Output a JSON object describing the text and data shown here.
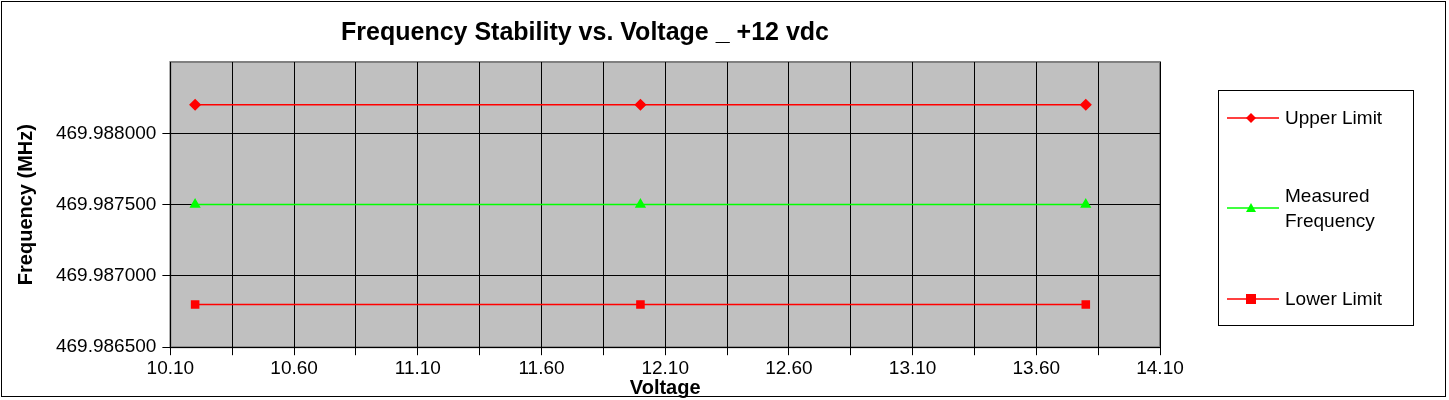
{
  "chart_data": {
    "type": "line",
    "title": "Frequency Stability vs. Voltage _ +12 vdc",
    "xlabel": "Voltage",
    "ylabel": "Frequency (MHz)",
    "x": [
      10.2,
      12.0,
      13.8
    ],
    "series": [
      {
        "name": "Upper Limit",
        "color": "#ff0000",
        "marker": "diamond",
        "values": [
          469.9882,
          469.9882,
          469.9882
        ]
      },
      {
        "name": "Measured Frequency",
        "color": "#00ff00",
        "marker": "triangle",
        "values": [
          469.9875,
          469.9875,
          469.9875
        ]
      },
      {
        "name": "Lower Limit",
        "color": "#ff0000",
        "marker": "square",
        "values": [
          469.9868,
          469.9868,
          469.9868
        ]
      }
    ],
    "xlim": [
      10.1,
      14.1
    ],
    "xticks": [
      {
        "value": 10.1,
        "label": "10.10"
      },
      {
        "value": 10.35,
        "label": null
      },
      {
        "value": 10.6,
        "label": "10.60"
      },
      {
        "value": 10.85,
        "label": null
      },
      {
        "value": 11.1,
        "label": "11.10"
      },
      {
        "value": 11.35,
        "label": null
      },
      {
        "value": 11.6,
        "label": "11.60"
      },
      {
        "value": 11.85,
        "label": null
      },
      {
        "value": 12.1,
        "label": "12.10"
      },
      {
        "value": 12.35,
        "label": null
      },
      {
        "value": 12.6,
        "label": "12.60"
      },
      {
        "value": 12.85,
        "label": null
      },
      {
        "value": 13.1,
        "label": "13.10"
      },
      {
        "value": 13.35,
        "label": null
      },
      {
        "value": 13.6,
        "label": "13.60"
      },
      {
        "value": 13.85,
        "label": null
      },
      {
        "value": 14.1,
        "label": "14.10"
      }
    ],
    "ylim": [
      469.9865,
      469.9885
    ],
    "yticks": [
      {
        "value": 469.9865,
        "label": "469.986500"
      },
      {
        "value": 469.987,
        "label": "469.987000"
      },
      {
        "value": 469.9875,
        "label": "469.987500"
      },
      {
        "value": 469.988,
        "label": "469.988000"
      }
    ],
    "grid": true,
    "legend": "right"
  }
}
